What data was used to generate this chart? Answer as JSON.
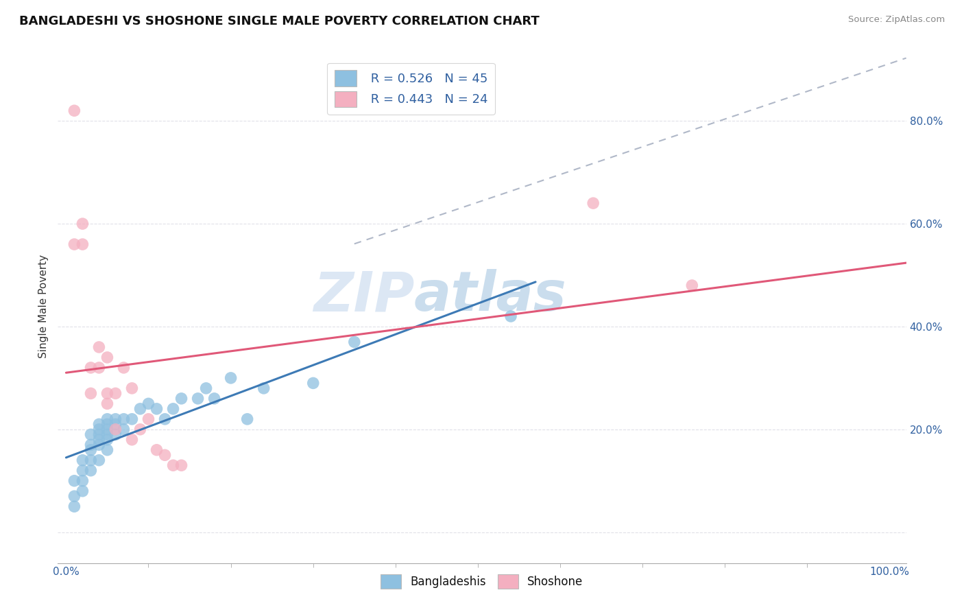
{
  "title": "BANGLADESHI VS SHOSHONE SINGLE MALE POVERTY CORRELATION CHART",
  "source": "Source: ZipAtlas.com",
  "ylabel": "Single Male Poverty",
  "xlim": [
    -0.01,
    1.02
  ],
  "ylim": [
    -0.06,
    0.94
  ],
  "xticks_major": [
    0.0,
    1.0
  ],
  "xticks_minor": [
    0.1,
    0.2,
    0.3,
    0.4,
    0.5,
    0.6,
    0.7,
    0.8,
    0.9
  ],
  "yticks": [
    0.0,
    0.2,
    0.4,
    0.6,
    0.8
  ],
  "xticklabels_major": [
    "0.0%",
    "100.0%"
  ],
  "yticklabels_right": [
    "",
    "20.0%",
    "40.0%",
    "60.0%",
    "80.0%"
  ],
  "yticklabels_left": [
    "",
    "",
    "",
    "",
    ""
  ],
  "blue_color": "#8ec0e0",
  "pink_color": "#f4afc0",
  "blue_line_color": "#3d7ab5",
  "pink_line_color": "#e05878",
  "dashed_line_color": "#b0b8c8",
  "bangladeshi_x": [
    0.01,
    0.01,
    0.01,
    0.02,
    0.02,
    0.02,
    0.02,
    0.03,
    0.03,
    0.03,
    0.03,
    0.03,
    0.04,
    0.04,
    0.04,
    0.04,
    0.04,
    0.04,
    0.05,
    0.05,
    0.05,
    0.05,
    0.05,
    0.05,
    0.06,
    0.06,
    0.06,
    0.07,
    0.07,
    0.08,
    0.09,
    0.1,
    0.11,
    0.12,
    0.13,
    0.14,
    0.16,
    0.17,
    0.18,
    0.2,
    0.22,
    0.24,
    0.3,
    0.35,
    0.54
  ],
  "bangladeshi_y": [
    0.05,
    0.07,
    0.1,
    0.08,
    0.1,
    0.12,
    0.14,
    0.12,
    0.14,
    0.16,
    0.17,
    0.19,
    0.14,
    0.17,
    0.18,
    0.19,
    0.2,
    0.21,
    0.16,
    0.18,
    0.19,
    0.2,
    0.21,
    0.22,
    0.19,
    0.21,
    0.22,
    0.2,
    0.22,
    0.22,
    0.24,
    0.25,
    0.24,
    0.22,
    0.24,
    0.26,
    0.26,
    0.28,
    0.26,
    0.3,
    0.22,
    0.28,
    0.29,
    0.37,
    0.42
  ],
  "shoshone_x": [
    0.01,
    0.01,
    0.02,
    0.02,
    0.03,
    0.03,
    0.04,
    0.04,
    0.05,
    0.05,
    0.05,
    0.06,
    0.06,
    0.07,
    0.08,
    0.08,
    0.09,
    0.1,
    0.11,
    0.12,
    0.13,
    0.14,
    0.64,
    0.76
  ],
  "shoshone_y": [
    0.82,
    0.56,
    0.56,
    0.6,
    0.27,
    0.32,
    0.32,
    0.36,
    0.25,
    0.27,
    0.34,
    0.2,
    0.27,
    0.32,
    0.18,
    0.28,
    0.2,
    0.22,
    0.16,
    0.15,
    0.13,
    0.13,
    0.64,
    0.48
  ],
  "watermark_zip": "ZIP",
  "watermark_atlas": "atlas",
  "background_color": "#ffffff",
  "grid_color": "#e0e0e8"
}
